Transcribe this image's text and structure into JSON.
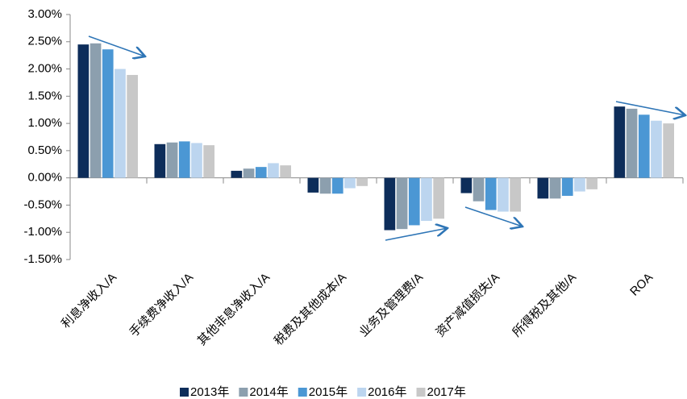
{
  "chart_data": {
    "type": "bar",
    "categories": [
      "利息净收入/A",
      "手续费净收入/A",
      "其他非息净收入/A",
      "税费及其他成本/A",
      "业务及管理费/A",
      "资产减值损失/A",
      "所得税及其他/A",
      "ROA"
    ],
    "series": [
      {
        "name": "2013年",
        "color": "#0d2d5a",
        "values": [
          2.45,
          0.62,
          0.13,
          -0.27,
          -0.96,
          -0.28,
          -0.38,
          1.31
        ]
      },
      {
        "name": "2014年",
        "color": "#8c9fae",
        "values": [
          2.47,
          0.65,
          0.17,
          -0.29,
          -0.94,
          -0.43,
          -0.38,
          1.27
        ]
      },
      {
        "name": "2015年",
        "color": "#4b97d4",
        "values": [
          2.36,
          0.67,
          0.2,
          -0.29,
          -0.87,
          -0.59,
          -0.33,
          1.16
        ]
      },
      {
        "name": "2016年",
        "color": "#bcd5ef",
        "values": [
          2.0,
          0.64,
          0.27,
          -0.19,
          -0.79,
          -0.62,
          -0.25,
          1.05
        ]
      },
      {
        "name": "2017年",
        "color": "#c8c8c8",
        "values": [
          1.89,
          0.6,
          0.23,
          -0.15,
          -0.75,
          -0.62,
          -0.21,
          1.0
        ]
      }
    ],
    "ylim": [
      -1.5,
      3
    ],
    "yticks": [
      {
        "value": -1.5,
        "label": "-1.50%"
      },
      {
        "value": -1,
        "label": "-1.00%"
      },
      {
        "value": -0.5,
        "label": "-0.50%"
      },
      {
        "value": 0,
        "label": "0.00%"
      },
      {
        "value": 0.5,
        "label": "0.50%"
      },
      {
        "value": 1,
        "label": "1.00%"
      },
      {
        "value": 1.5,
        "label": "1.50%"
      },
      {
        "value": 2,
        "label": "2.00%"
      },
      {
        "value": 2.5,
        "label": "2.50%"
      },
      {
        "value": 3,
        "label": "3.00%"
      }
    ],
    "legend": "bottom"
  }
}
